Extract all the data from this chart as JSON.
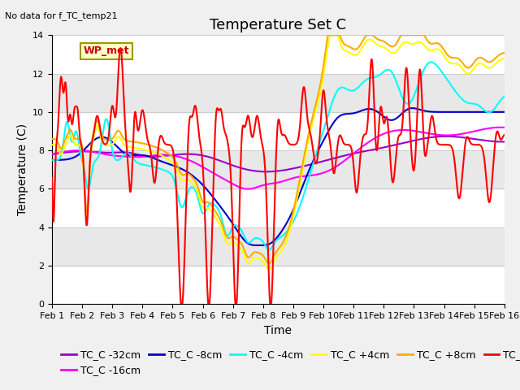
{
  "title": "Temperature Set C",
  "ylabel": "Temperature (C)",
  "xlabel": "Time",
  "top_left_text": "No data for f_TC_temp21",
  "wp_met_label": "WP_met",
  "ylim": [
    0,
    14
  ],
  "xlim": [
    0,
    15
  ],
  "xtick_labels": [
    "Feb 1",
    "Feb 2",
    "Feb 3",
    "Feb 4",
    "Feb 5",
    "Feb 6",
    "Feb 7",
    "Feb 8",
    "Feb 9",
    "Feb 10",
    "Feb 11",
    "Feb 12",
    "Feb 13",
    "Feb 14",
    "Feb 15",
    "Feb 16"
  ],
  "xtick_positions": [
    0,
    1,
    2,
    3,
    4,
    5,
    6,
    7,
    8,
    9,
    10,
    11,
    12,
    13,
    14,
    15
  ],
  "series_colors": {
    "TC_C -32cm": "#9900cc",
    "TC_C -16cm": "#ff00ff",
    "TC_C -8cm": "#0000cc",
    "TC_C -4cm": "#00ffff",
    "TC_C +4cm": "#ffff00",
    "TC_C +8cm": "#ffaa00",
    "TC_C +12cm": "#ff0000"
  },
  "background_color": "#f0f0f0",
  "plot_bg_color": "#e8e8e8",
  "grid_color": "#ffffff",
  "title_fontsize": 13,
  "axis_label_fontsize": 10,
  "tick_fontsize": 8,
  "legend_fontsize": 9
}
